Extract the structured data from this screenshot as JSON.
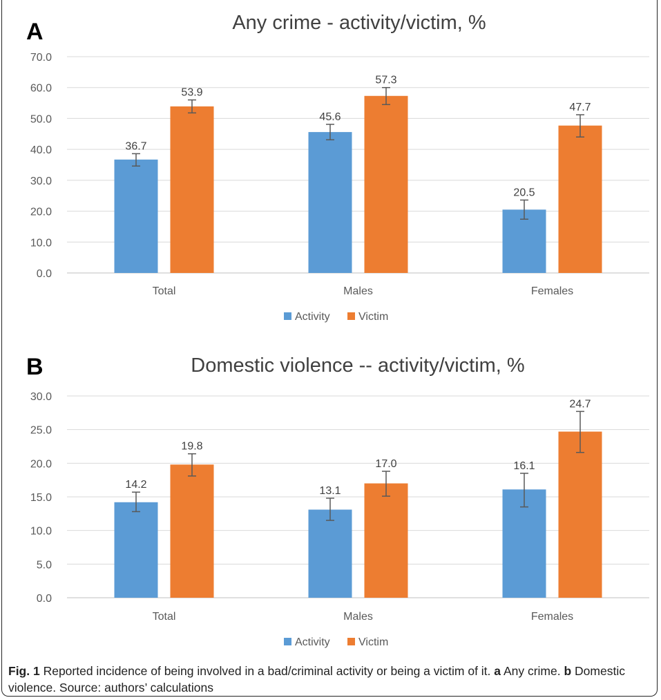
{
  "figure": {
    "caption_label": "Fig. 1",
    "caption_text": "Reported incidence of being involved in a bad/criminal activity or being a victim of it.",
    "caption_a_label": "a",
    "caption_a_text": "Any crime.",
    "caption_b_label": "b",
    "caption_b_text": "Domestic violence. Source: authors’ calculations"
  },
  "colors": {
    "activity": "#5B9BD5",
    "victim": "#ED7D31",
    "grid": "#D9D9D9",
    "axis_text": "#595959",
    "title_text": "#404040"
  },
  "chart_data": [
    {
      "type": "bar",
      "panel_label": "A",
      "title": "Any crime - activity/victim, %",
      "categories": [
        "Total",
        "Males",
        "Females"
      ],
      "series": [
        {
          "name": "Activity",
          "values": [
            36.7,
            45.6,
            20.5
          ],
          "error_low": [
            34.6,
            43.1,
            17.4
          ],
          "error_high": [
            38.6,
            48.1,
            23.6
          ]
        },
        {
          "name": "Victim",
          "values": [
            53.9,
            57.3,
            47.7
          ],
          "error_low": [
            51.8,
            54.5,
            44.0
          ],
          "error_high": [
            56.0,
            60.0,
            51.2
          ]
        }
      ],
      "ylim": [
        0,
        70
      ],
      "yticks": [
        "0.0",
        "10.0",
        "20.0",
        "30.0",
        "40.0",
        "50.0",
        "60.0",
        "70.0"
      ],
      "data_labels": [
        [
          "36.7",
          "45.6",
          "20.5"
        ],
        [
          "53.9",
          "57.3",
          "47.7"
        ]
      ],
      "grid": true,
      "legend": "bottom"
    },
    {
      "type": "bar",
      "panel_label": "B",
      "title": "Domestic violence -- activity/victim, %",
      "categories": [
        "Total",
        "Males",
        "Females"
      ],
      "series": [
        {
          "name": "Activity",
          "values": [
            14.2,
            13.1,
            16.1
          ],
          "error_low": [
            12.8,
            11.5,
            13.5
          ],
          "error_high": [
            15.7,
            14.8,
            18.5
          ]
        },
        {
          "name": "Victim",
          "values": [
            19.8,
            17.0,
            24.7
          ],
          "error_low": [
            18.1,
            15.1,
            21.6
          ],
          "error_high": [
            21.4,
            18.8,
            27.7
          ]
        }
      ],
      "ylim": [
        0,
        30
      ],
      "yticks": [
        "0.0",
        "5.0",
        "10.0",
        "15.0",
        "20.0",
        "25.0",
        "30.0"
      ],
      "data_labels": [
        [
          "14.2",
          "13.1",
          "16.1"
        ],
        [
          "19.8",
          "17.0",
          "24.7"
        ]
      ],
      "grid": true,
      "legend": "bottom"
    }
  ]
}
